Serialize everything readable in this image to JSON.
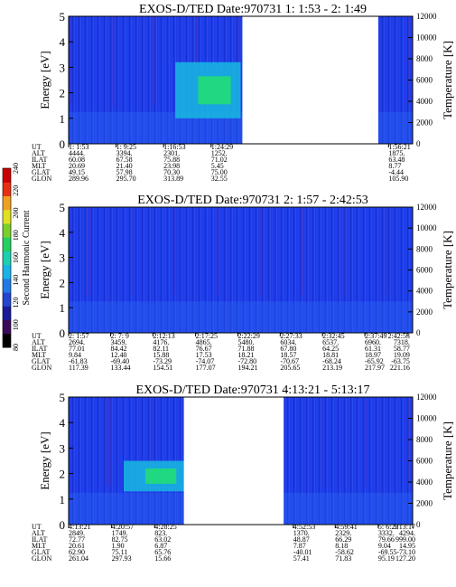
{
  "chart_data": [
    {
      "type": "heatmap",
      "title": "EXOS-D/TED   Date:970731  1: 1:53 - 2: 1:49",
      "ylabel": "Energy [eV]",
      "y2label": "Temperature [K]",
      "ylim": [
        0,
        5
      ],
      "y2lim": [
        0,
        12000
      ],
      "yticks": [
        "0",
        "1",
        "2",
        "3",
        "4",
        "5"
      ],
      "y2ticks": [
        "0",
        "2000",
        "4000",
        "6000",
        "8000",
        "10000",
        "12000"
      ],
      "row_labels": [
        "UT",
        "ALT",
        "ILAT",
        "MLT",
        "GLAT",
        "GLON"
      ],
      "columns": [
        {
          "t": 0.0,
          "values": [
            "1: 1:53",
            "4444.",
            "60.08",
            "20.69",
            "49.15",
            "289.96"
          ]
        },
        {
          "t": 0.138,
          "values": [
            "1: 9:25",
            "3394.",
            "67.58",
            "21.40",
            "57.98",
            "295.70"
          ]
        },
        {
          "t": 0.276,
          "values": [
            "1:16:53",
            "2301.",
            "75.88",
            "23.98",
            "70.30",
            "313.89"
          ]
        },
        {
          "t": 0.414,
          "values": [
            "1:24:29",
            "1252.",
            "71.02",
            "5.45",
            "75.00",
            "32.55"
          ]
        },
        {
          "t": 0.93,
          "values": [
            "1:56:21",
            "1875.",
            "63.48",
            "8.77",
            "-4.44",
            "105.90"
          ]
        }
      ],
      "gaps": [
        [
          0.505,
          0.9
        ]
      ],
      "highlights": [
        {
          "t": [
            0.31,
            0.5
          ],
          "e": [
            1.0,
            3.2
          ],
          "level": "green"
        }
      ]
    },
    {
      "type": "heatmap",
      "title": "EXOS-D/TED   Date:970731  2: 1:57 - 2:42:53",
      "ylabel": "Energy [eV]",
      "y2label": "Temperature [K]",
      "ylim": [
        0,
        5
      ],
      "y2lim": [
        0,
        12000
      ],
      "yticks": [
        "0",
        "1",
        "2",
        "3",
        "4",
        "5"
      ],
      "y2ticks": [
        "0",
        "2000",
        "4000",
        "6000",
        "8000",
        "10000",
        "12000"
      ],
      "row_labels": [
        "UT",
        "ALT",
        "ILAT",
        "MLT",
        "GLAT",
        "GLON"
      ],
      "columns": [
        {
          "t": 0.0,
          "values": [
            "2: 1:57",
            "2694.",
            "77.01",
            "9.84",
            "-61.83",
            "117.39"
          ]
        },
        {
          "t": 0.122,
          "values": [
            "2: 7: 9",
            "3459.",
            "84.42",
            "12.40",
            "-69.40",
            "133.44"
          ]
        },
        {
          "t": 0.245,
          "values": [
            "2:12:13",
            "4176.",
            "82.11",
            "15.88",
            "-73.29",
            "154.51"
          ]
        },
        {
          "t": 0.369,
          "values": [
            "2:17:25",
            "4865.",
            "76.67",
            "17.53",
            "-74.07",
            "177.07"
          ]
        },
        {
          "t": 0.492,
          "values": [
            "2:22:29",
            "5480.",
            "71.88",
            "18.21",
            "-72.80",
            "194.21"
          ]
        },
        {
          "t": 0.615,
          "values": [
            "2:27:33",
            "6034.",
            "67.80",
            "18.57",
            "-70.67",
            "205.65"
          ]
        },
        {
          "t": 0.738,
          "values": [
            "2:32:45",
            "6537.",
            "64.25",
            "18.81",
            "-68.24",
            "213.19"
          ]
        },
        {
          "t": 0.861,
          "values": [
            "2:37:49",
            "6960.",
            "61.31",
            "18.97",
            "-65.92",
            "217.97"
          ]
        },
        {
          "t": 0.984,
          "values": [
            "2:42:53",
            "7318.",
            "58.77",
            "19.09",
            "-63.75",
            "221.16"
          ]
        }
      ],
      "gaps": [],
      "highlights": []
    },
    {
      "type": "heatmap",
      "title": "EXOS-D/TED   Date:970731  4:13:21 - 5:13:17",
      "ylabel": "Energy [eV]",
      "y2label": "Temperature [K]",
      "ylim": [
        0,
        5
      ],
      "y2lim": [
        0,
        12000
      ],
      "yticks": [
        "0",
        "1",
        "2",
        "3",
        "4",
        "5"
      ],
      "y2ticks": [
        "0",
        "2000",
        "4000",
        "6000",
        "8000",
        "10000",
        "12000"
      ],
      "row_labels": [
        "UT",
        "ALT",
        "ILAT",
        "MLT",
        "GLAT",
        "GLON"
      ],
      "columns": [
        {
          "t": 0.0,
          "values": [
            "4:13:21",
            "2849.",
            "72.77",
            "20.61",
            "62.90",
            "261.04"
          ]
        },
        {
          "t": 0.125,
          "values": [
            "4:20:57",
            "1749.",
            "82.75",
            "1.90",
            "75.11",
            "297.93"
          ]
        },
        {
          "t": 0.25,
          "values": [
            "4:28:25",
            "823.",
            "63.02",
            "6.87",
            "65.76",
            "15.66"
          ]
        },
        {
          "t": 0.653,
          "values": [
            "4:52:53",
            "1370.",
            "48.87",
            "7.87",
            "-40.01",
            "57.41"
          ]
        },
        {
          "t": 0.775,
          "values": [
            "4:59:41",
            "2329.",
            "66.29",
            "8.18",
            "-58.62",
            "71.83"
          ]
        },
        {
          "t": 0.9,
          "values": [
            "5: 6:29",
            "3332.",
            "79.66",
            "9.04",
            "-69.55",
            "95.19"
          ]
        },
        {
          "t": 1.0,
          "values": [
            "5:13:17",
            "4294.",
            "999.00",
            "14.95",
            "-73.10",
            "127.20"
          ]
        }
      ],
      "gaps": [
        [
          0.335,
          0.625
        ]
      ],
      "highlights": [
        {
          "t": [
            0.16,
            0.34
          ],
          "e": [
            1.3,
            2.5
          ],
          "level": "green"
        }
      ]
    }
  ],
  "colorbar": {
    "label": "Second Harmonic Current",
    "ticks": [
      "80",
      "100",
      "120",
      "140",
      "160",
      "180",
      "200",
      "220",
      "240"
    ],
    "range": [
      80,
      240
    ],
    "colors": [
      "#000000",
      "#3a0a5a",
      "#1a1a9a",
      "#2345d0",
      "#1f7ae8",
      "#18b4e8",
      "#1ad0b0",
      "#22d060",
      "#7ad02a",
      "#e0e020",
      "#f0a020",
      "#e83010",
      "#cc0000"
    ]
  },
  "colors": {
    "background_blue": "#1c3ce6",
    "gap": "#ffffff"
  }
}
